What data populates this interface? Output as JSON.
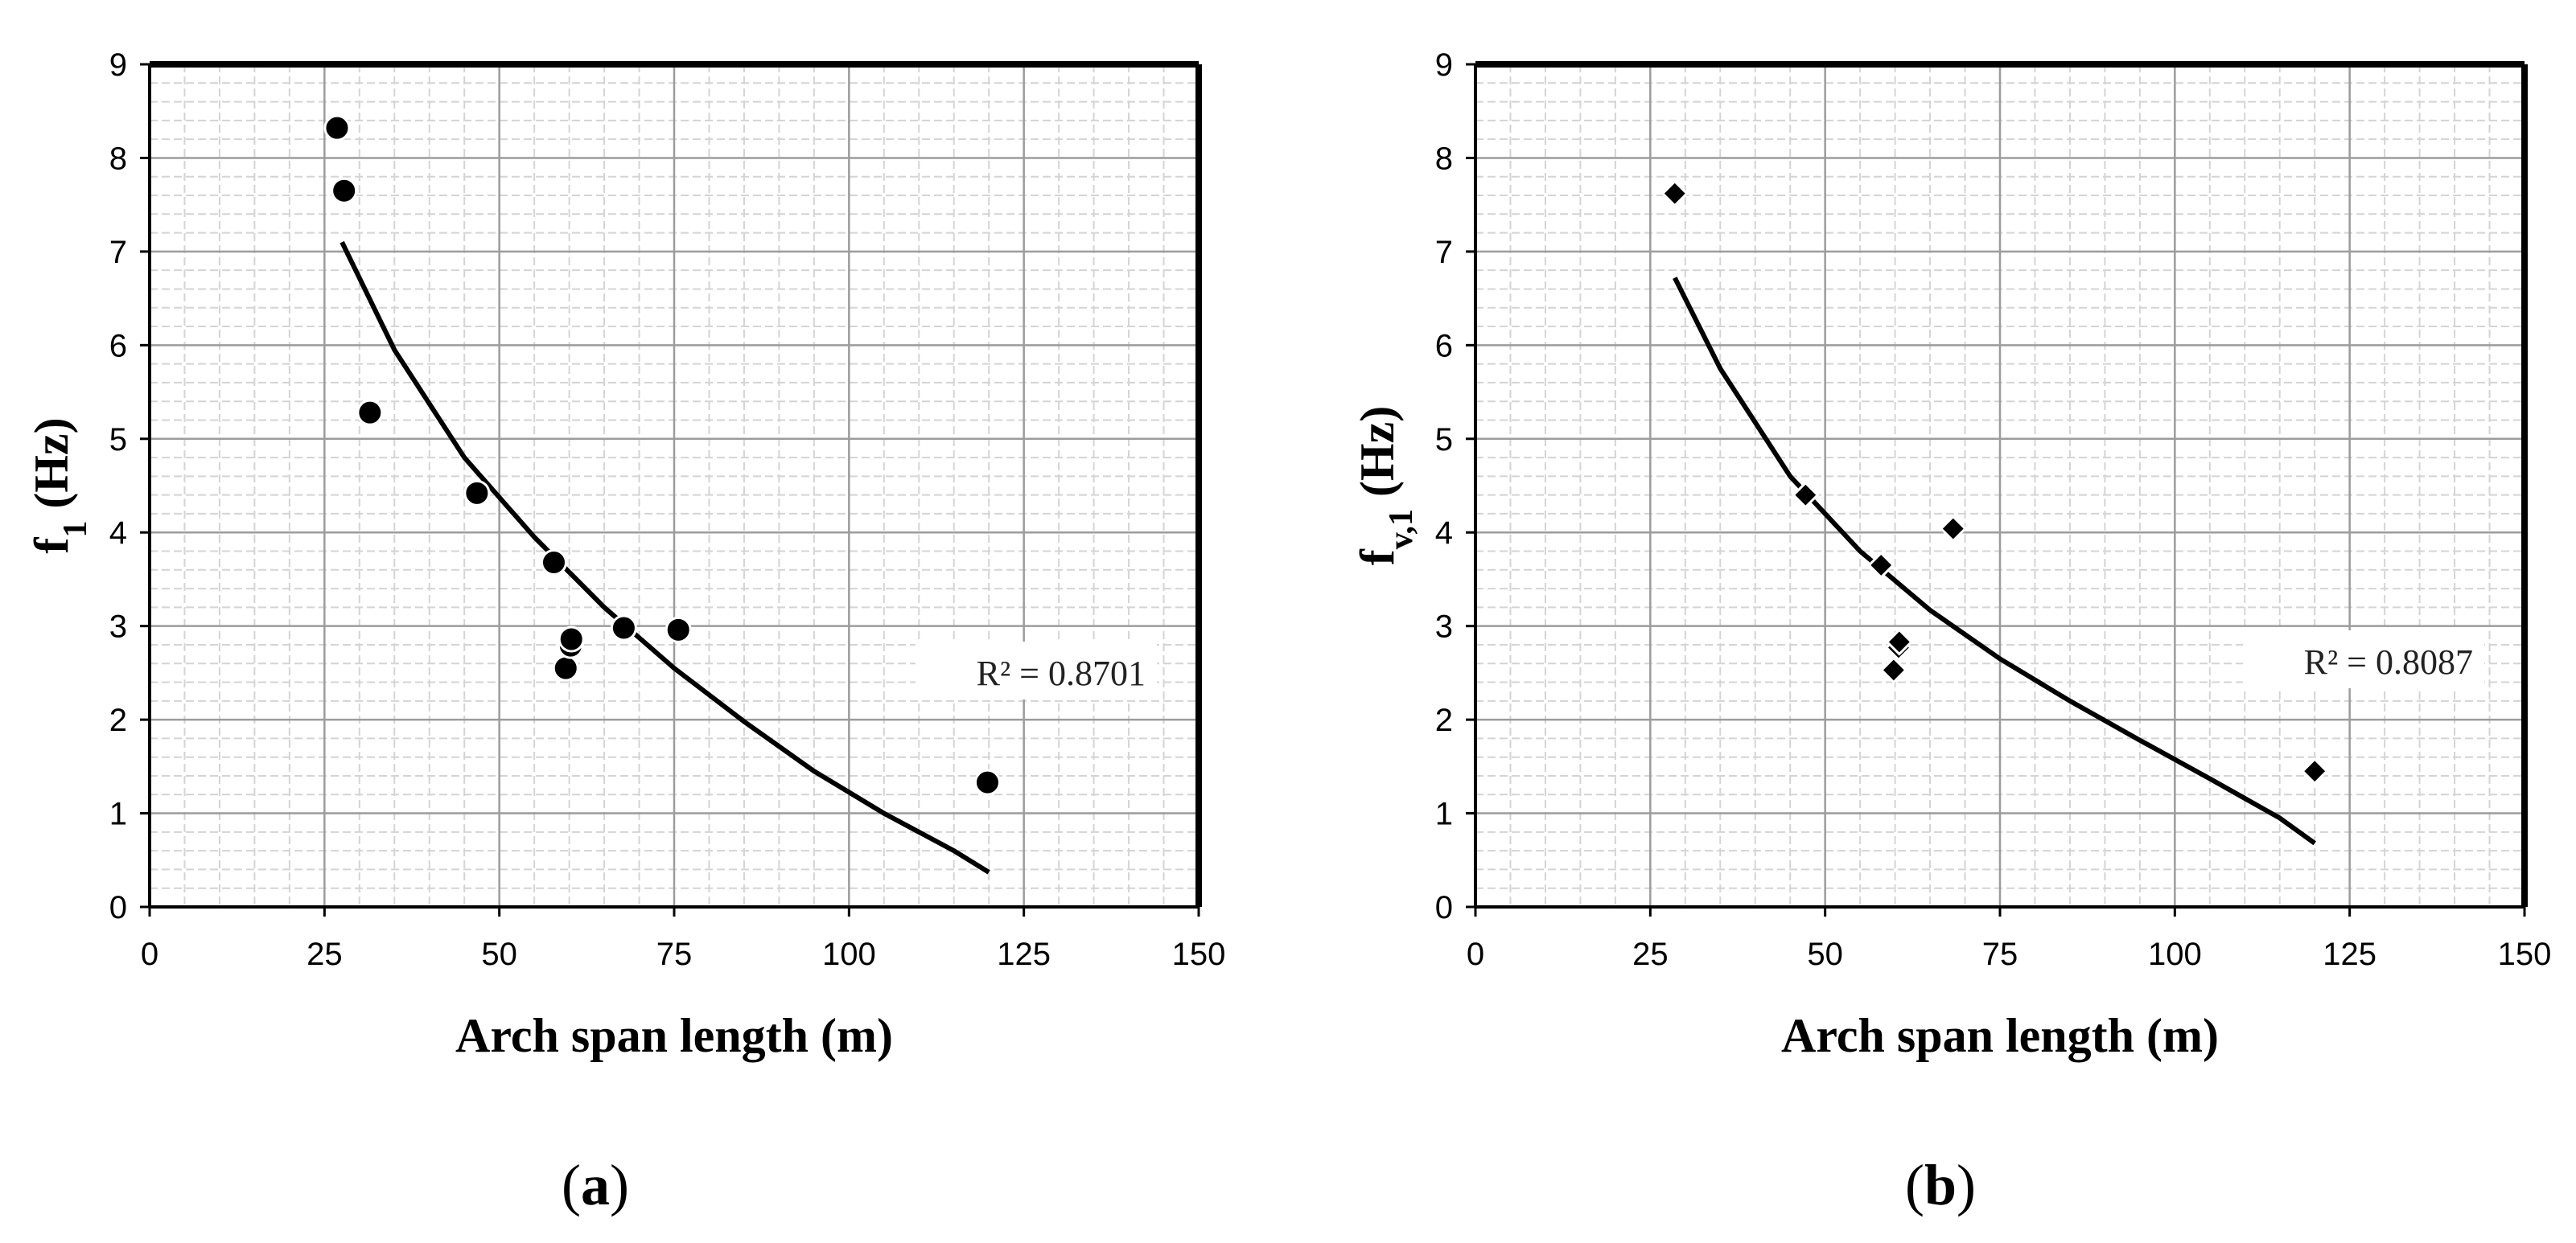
{
  "chart_data": [
    {
      "type": "scatter",
      "panel_label": "a",
      "xlabel": "Arch span length (m)",
      "ylabel_main": "f",
      "ylabel_sub": "1",
      "ylabel_suffix": " (Hz)",
      "xlim": [
        0,
        150
      ],
      "ylim": [
        0,
        9
      ],
      "xticks": [
        0,
        25,
        50,
        75,
        100,
        125,
        150
      ],
      "yticks": [
        0,
        1,
        2,
        3,
        4,
        5,
        6,
        7,
        8,
        9
      ],
      "grid": true,
      "marker": "circle",
      "series": [
        {
          "name": "f1",
          "points": [
            [
              26.8,
              8.32
            ],
            [
              27.8,
              7.65
            ],
            [
              31.5,
              5.28
            ],
            [
              46.8,
              4.42
            ],
            [
              57.8,
              3.68
            ],
            [
              59.5,
              2.55
            ],
            [
              60.2,
              2.79
            ],
            [
              60.3,
              2.86
            ],
            [
              67.8,
              2.98
            ],
            [
              75.6,
              2.96
            ],
            [
              119.8,
              1.33
            ]
          ]
        }
      ],
      "trendline": {
        "type": "power-fit",
        "x_range": [
          27.5,
          120
        ],
        "points": [
          [
            27.5,
            7.1
          ],
          [
            35,
            5.95
          ],
          [
            45,
            4.8
          ],
          [
            55,
            3.95
          ],
          [
            65,
            3.2
          ],
          [
            75,
            2.55
          ],
          [
            85,
            1.98
          ],
          [
            95,
            1.45
          ],
          [
            105,
            1.0
          ],
          [
            115,
            0.6
          ],
          [
            120,
            0.37
          ]
        ]
      },
      "annotation": "R² = 0.8701"
    },
    {
      "type": "scatter",
      "panel_label": "b",
      "xlabel": "Arch span length (m)",
      "ylabel_main": "f",
      "ylabel_sub": "v,1",
      "ylabel_suffix": " (Hz)",
      "xlim": [
        0,
        150
      ],
      "ylim": [
        0,
        9
      ],
      "xticks": [
        0,
        25,
        50,
        75,
        100,
        125,
        150
      ],
      "yticks": [
        0,
        1,
        2,
        3,
        4,
        5,
        6,
        7,
        8,
        9
      ],
      "grid": true,
      "marker": "diamond",
      "series": [
        {
          "name": "fv1",
          "points": [
            [
              28.5,
              7.62
            ],
            [
              47.2,
              4.4
            ],
            [
              58.0,
              3.65
            ],
            [
              59.8,
              2.53
            ],
            [
              60.5,
              2.77
            ],
            [
              60.6,
              2.83
            ],
            [
              68.3,
              4.04
            ],
            [
              120.0,
              1.45
            ]
          ]
        }
      ],
      "trendline": {
        "type": "power-fit",
        "x_range": [
          28.5,
          120
        ],
        "points": [
          [
            28.5,
            6.72
          ],
          [
            35,
            5.75
          ],
          [
            45,
            4.6
          ],
          [
            55,
            3.8
          ],
          [
            65,
            3.17
          ],
          [
            75,
            2.65
          ],
          [
            85,
            2.2
          ],
          [
            95,
            1.78
          ],
          [
            105,
            1.37
          ],
          [
            115,
            0.95
          ],
          [
            120,
            0.68
          ]
        ]
      },
      "annotation": "R² = 0.8087"
    }
  ]
}
